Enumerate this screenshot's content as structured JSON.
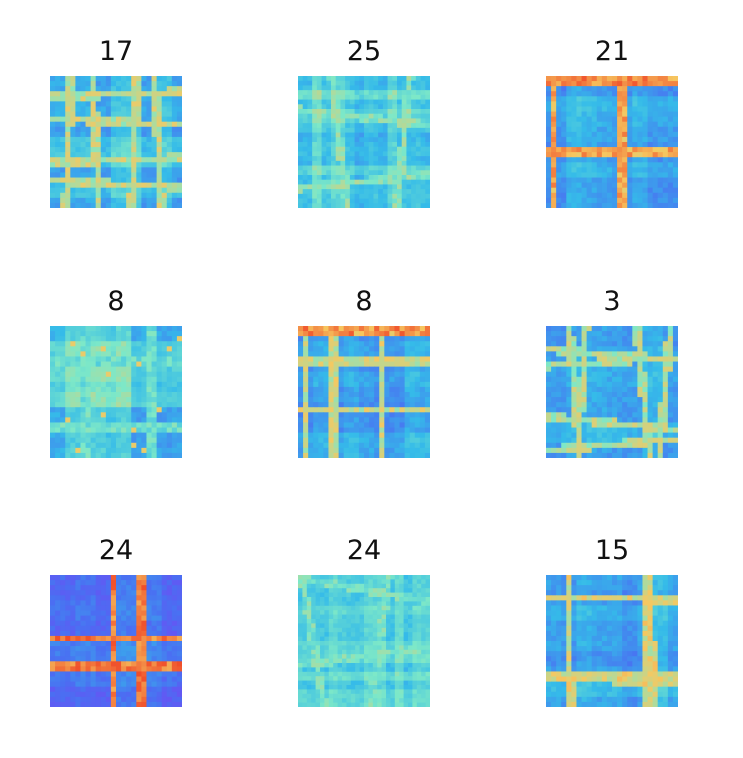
{
  "chart_data": {
    "type": "heatmap",
    "layout": "3x3 grid of small heatmaps, no axes, no colorbar",
    "colormap": "rainbow",
    "colormap_stops": [
      "#7f3cf5",
      "#4a6ff2",
      "#35bbe9",
      "#7de8c8",
      "#f6c860",
      "#f04c2a"
    ],
    "panels": [
      {
        "title": "17",
        "pattern": "crossing-lines-tilted"
      },
      {
        "title": "25",
        "pattern": "dense-checker-diagonal"
      },
      {
        "title": "21",
        "pattern": "checker-with-top-band"
      },
      {
        "title": "8",
        "pattern": "checker-spotted"
      },
      {
        "title": "8",
        "pattern": "checker-vertical-bands"
      },
      {
        "title": "3",
        "pattern": "tilted-cross-lines"
      },
      {
        "title": "24",
        "pattern": "bold-cross"
      },
      {
        "title": "24",
        "pattern": "dense-diagonal-swirl"
      },
      {
        "title": "15",
        "pattern": "checker-with-lines"
      }
    ]
  }
}
